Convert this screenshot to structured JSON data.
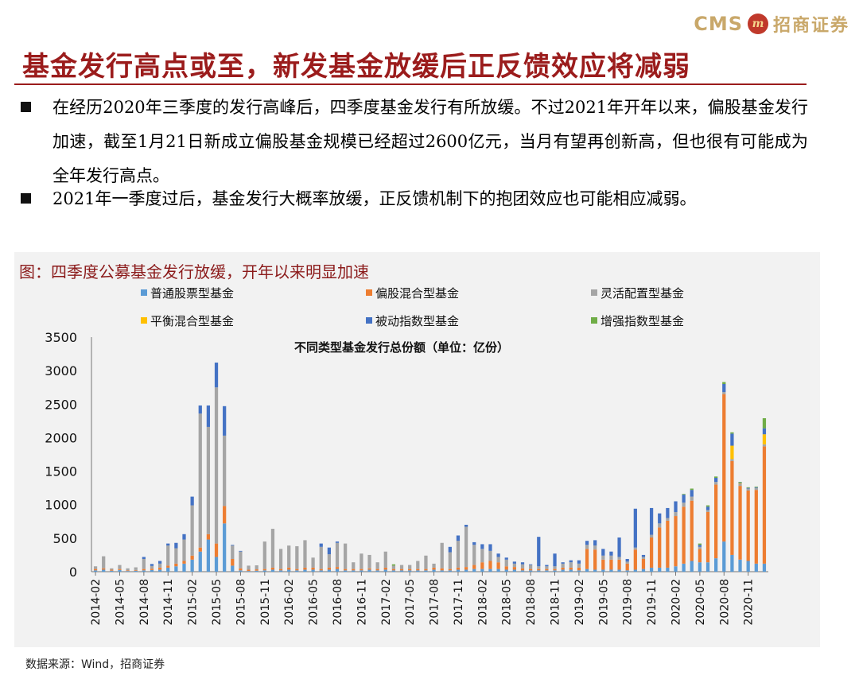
{
  "header": {
    "logo_text": "CMS",
    "logo_mark": "m",
    "logo_cn": "招商证券",
    "title": "基金发行高点或至，新发基金放缓后正反馈效应将减弱"
  },
  "bullets": [
    "在经历2020年三季度的发行高峰后，四季度基金发行有所放缓。不过2021年开年以来，偏股基金发行加速，截至1月21日新成立偏股基金规模已经超过2600亿元，当月有望再创新高，但也很有可能成为全年发行高点。",
    "2021年一季度过后，基金发行大概率放缓，正反馈机制下的抱团效应也可能相应减弱。"
  ],
  "figure": {
    "title": "图：四季度公募基金发行放缓，开年以来明显加速",
    "source": "数据来源：Wind，招商证券"
  },
  "chart_data": {
    "type": "bar",
    "stacked": true,
    "title": "不同类型基金发行总份额（单位：亿份）",
    "ylim": [
      0,
      3500
    ],
    "yticks": [
      0,
      500,
      1000,
      1500,
      2000,
      2500,
      3000,
      3500
    ],
    "legend_position": "top",
    "x_start": "2014-02",
    "xtick_labels": [
      "2014-02",
      "2014-05",
      "2014-08",
      "2014-11",
      "2015-02",
      "2015-05",
      "2015-08",
      "2015-11",
      "2016-02",
      "2016-05",
      "2016-08",
      "2016-11",
      "2017-02",
      "2017-05",
      "2017-08",
      "2017-11",
      "2018-02",
      "2018-05",
      "2018-08",
      "2018-11",
      "2019-02",
      "2019-05",
      "2019-08",
      "2019-11",
      "2020-02",
      "2020-05",
      "2020-08",
      "2020-11"
    ],
    "categories": [
      "2014-02",
      "2014-03",
      "2014-04",
      "2014-05",
      "2014-06",
      "2014-07",
      "2014-08",
      "2014-09",
      "2014-10",
      "2014-11",
      "2014-12",
      "2015-01",
      "2015-02",
      "2015-03",
      "2015-04",
      "2015-05",
      "2015-06",
      "2015-07",
      "2015-08",
      "2015-09",
      "2015-10",
      "2015-11",
      "2015-12",
      "2016-01",
      "2016-02",
      "2016-03",
      "2016-04",
      "2016-05",
      "2016-06",
      "2016-07",
      "2016-08",
      "2016-09",
      "2016-10",
      "2016-11",
      "2016-12",
      "2017-01",
      "2017-02",
      "2017-03",
      "2017-04",
      "2017-05",
      "2017-06",
      "2017-07",
      "2017-08",
      "2017-09",
      "2017-10",
      "2017-11",
      "2017-12",
      "2018-01",
      "2018-02",
      "2018-03",
      "2018-04",
      "2018-05",
      "2018-06",
      "2018-07",
      "2018-08",
      "2018-09",
      "2018-10",
      "2018-11",
      "2018-12",
      "2019-01",
      "2019-02",
      "2019-03",
      "2019-04",
      "2019-05",
      "2019-06",
      "2019-07",
      "2019-08",
      "2019-09",
      "2019-10",
      "2019-11",
      "2019-12",
      "2020-01",
      "2020-02",
      "2020-03",
      "2020-04",
      "2020-05",
      "2020-06",
      "2020-07",
      "2020-08",
      "2020-09",
      "2020-10",
      "2020-11",
      "2020-12",
      "2021-01"
    ],
    "series": [
      {
        "name": "普通股票型基金",
        "color": "#5b9bd5",
        "values": [
          20,
          30,
          15,
          25,
          10,
          15,
          20,
          25,
          30,
          60,
          80,
          120,
          180,
          300,
          480,
          220,
          720,
          90,
          20,
          10,
          15,
          20,
          30,
          20,
          30,
          20,
          30,
          30,
          20,
          30,
          40,
          20,
          20,
          20,
          30,
          20,
          30,
          20,
          20,
          20,
          20,
          20,
          30,
          20,
          20,
          30,
          30,
          40,
          40,
          40,
          40,
          30,
          30,
          20,
          20,
          20,
          20,
          20,
          30,
          30,
          20,
          40,
          30,
          30,
          30,
          30,
          20,
          30,
          40,
          60,
          60,
          60,
          80,
          120,
          160,
          140,
          140,
          200,
          450,
          250,
          180,
          160,
          120,
          120
        ]
      },
      {
        "name": "偏股混合型基金",
        "color": "#ed7d31",
        "values": [
          20,
          20,
          15,
          15,
          10,
          10,
          20,
          20,
          30,
          30,
          40,
          40,
          60,
          60,
          80,
          200,
          260,
          100,
          30,
          20,
          20,
          20,
          30,
          20,
          30,
          20,
          30,
          30,
          20,
          30,
          30,
          20,
          20,
          20,
          20,
          20,
          30,
          20,
          20,
          20,
          20,
          20,
          30,
          30,
          20,
          30,
          40,
          60,
          100,
          120,
          100,
          50,
          40,
          30,
          20,
          20,
          20,
          20,
          30,
          30,
          40,
          300,
          300,
          150,
          150,
          150,
          100,
          300,
          150,
          450,
          600,
          700,
          750,
          850,
          900,
          200,
          750,
          1100,
          2200,
          1400,
          1100,
          1050,
          1100,
          1750
        ]
      },
      {
        "name": "灵活配置型基金",
        "color": "#a5a5a5",
        "values": [
          40,
          180,
          20,
          60,
          30,
          40,
          150,
          40,
          60,
          300,
          230,
          320,
          750,
          2000,
          1600,
          2330,
          1050,
          200,
          250,
          60,
          60,
          410,
          580,
          300,
          330,
          340,
          410,
          150,
          330,
          200,
          360,
          380,
          100,
          230,
          200,
          100,
          240,
          50,
          60,
          60,
          120,
          200,
          60,
          380,
          250,
          400,
          600,
          300,
          200,
          150,
          80,
          100,
          50,
          60,
          60,
          40,
          40,
          40,
          60,
          80,
          60,
          60,
          60,
          60,
          60,
          40,
          30,
          30,
          30,
          40,
          60,
          40,
          60,
          60,
          60,
          30,
          30,
          40,
          30,
          30,
          30,
          30,
          30,
          30
        ]
      },
      {
        "name": "平衡混合型基金",
        "color": "#ffc000",
        "values": [
          0,
          0,
          0,
          0,
          0,
          0,
          0,
          0,
          0,
          0,
          0,
          0,
          0,
          0,
          0,
          0,
          0,
          0,
          0,
          0,
          0,
          0,
          0,
          0,
          0,
          0,
          0,
          0,
          0,
          0,
          0,
          0,
          0,
          0,
          0,
          0,
          0,
          0,
          0,
          0,
          0,
          0,
          0,
          0,
          0,
          0,
          0,
          0,
          0,
          0,
          0,
          0,
          0,
          0,
          0,
          0,
          0,
          0,
          0,
          0,
          0,
          0,
          0,
          0,
          0,
          0,
          0,
          0,
          0,
          0,
          0,
          0,
          0,
          0,
          0,
          0,
          0,
          0,
          0,
          200,
          10,
          0,
          0,
          150
        ]
      },
      {
        "name": "被动指数型基金",
        "color": "#4472c4",
        "values": [
          0,
          0,
          0,
          0,
          0,
          0,
          30,
          30,
          40,
          30,
          80,
          80,
          130,
          120,
          320,
          370,
          440,
          10,
          10,
          0,
          0,
          0,
          0,
          0,
          0,
          0,
          0,
          0,
          50,
          100,
          20,
          0,
          0,
          0,
          0,
          0,
          0,
          0,
          0,
          0,
          0,
          0,
          0,
          0,
          80,
          80,
          30,
          40,
          70,
          100,
          50,
          30,
          30,
          30,
          10,
          440,
          20,
          190,
          20,
          30,
          50,
          60,
          80,
          100,
          60,
          290,
          40,
          580,
          30,
          400,
          150,
          150,
          160,
          120,
          100,
          30,
          50,
          60,
          120,
          180,
          10,
          10,
          10,
          90
        ]
      },
      {
        "name": "增强指数型基金",
        "color": "#70ad47",
        "values": [
          0,
          0,
          0,
          0,
          0,
          0,
          0,
          0,
          0,
          0,
          0,
          0,
          0,
          0,
          0,
          0,
          0,
          0,
          0,
          0,
          0,
          0,
          0,
          0,
          0,
          0,
          0,
          0,
          0,
          0,
          0,
          0,
          0,
          0,
          0,
          0,
          0,
          20,
          0,
          0,
          0,
          0,
          0,
          0,
          0,
          0,
          0,
          0,
          0,
          0,
          0,
          0,
          0,
          0,
          0,
          0,
          0,
          0,
          0,
          0,
          0,
          0,
          0,
          0,
          0,
          0,
          0,
          0,
          0,
          0,
          0,
          0,
          0,
          10,
          20,
          20,
          20,
          20,
          30,
          20,
          10,
          10,
          10,
          150
        ]
      }
    ]
  }
}
